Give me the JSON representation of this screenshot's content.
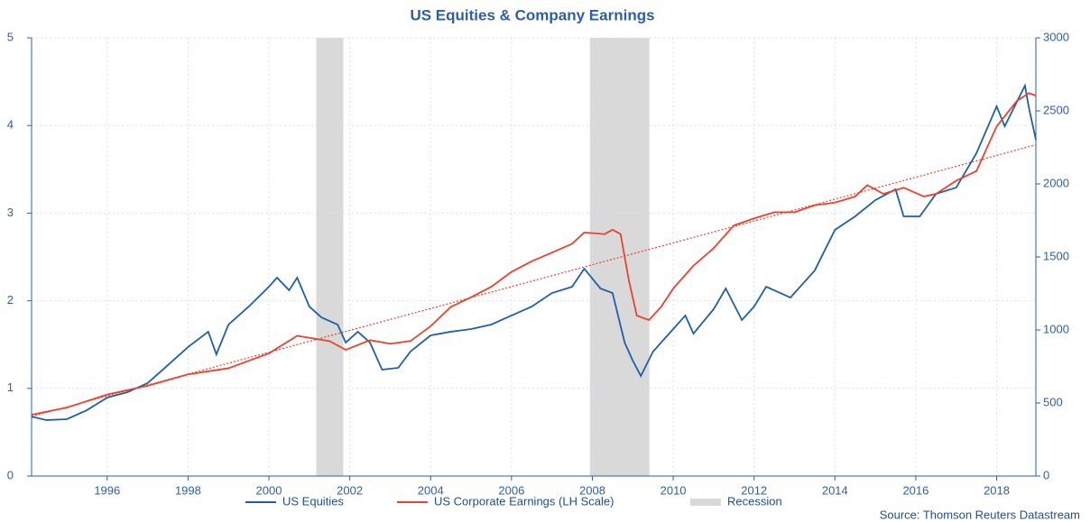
{
  "chart_data": {
    "type": "line",
    "title": "US Equities & Company Earnings",
    "source": "Source: Thomson Reuters Datastream",
    "xlim": [
      1994.13,
      2018.97
    ],
    "xticks": [
      1996,
      1998,
      2000,
      2002,
      2004,
      2006,
      2008,
      2010,
      2012,
      2014,
      2016,
      2018
    ],
    "ylim": [
      0,
      5
    ],
    "yticks": [
      0,
      1,
      2,
      3,
      4,
      5
    ],
    "y2lim": [
      0,
      3000
    ],
    "y2ticks": [
      0,
      500,
      1000,
      1500,
      2000,
      2500,
      3000
    ],
    "grid": true,
    "legend": "bottom",
    "recessions": {
      "name": "Recession",
      "color": "#d9d9d9",
      "spans": [
        [
          2001.17,
          2001.84
        ],
        [
          2007.94,
          2009.41
        ]
      ]
    },
    "series": [
      {
        "name": "US Equities",
        "color": "#1f5fa8",
        "axis": "y2",
        "x": [
          1994.13,
          1994.5,
          1995.0,
          1995.5,
          1996.0,
          1996.5,
          1997.0,
          1997.5,
          1998.0,
          1998.5,
          1998.7,
          1999.0,
          1999.5,
          2000.0,
          2000.2,
          2000.5,
          2000.7,
          2001.0,
          2001.3,
          2001.7,
          2001.9,
          2002.2,
          2002.5,
          2002.8,
          2003.2,
          2003.5,
          2004.0,
          2004.5,
          2005.0,
          2005.5,
          2006.0,
          2006.5,
          2007.0,
          2007.5,
          2007.8,
          2008.2,
          2008.5,
          2008.8,
          2009.0,
          2009.2,
          2009.5,
          2010.0,
          2010.3,
          2010.5,
          2011.0,
          2011.3,
          2011.7,
          2012.0,
          2012.3,
          2012.9,
          2013.5,
          2014.0,
          2014.5,
          2015.0,
          2015.5,
          2015.7,
          2016.1,
          2016.5,
          2017.0,
          2017.5,
          2018.0,
          2018.2,
          2018.7,
          2018.8,
          2018.97
        ],
        "values": [
          407,
          383,
          389,
          451,
          537,
          574,
          636,
          759,
          883,
          988,
          833,
          1037,
          1160,
          1296,
          1358,
          1272,
          1358,
          1160,
          1086,
          1037,
          914,
          988,
          914,
          728,
          741,
          852,
          963,
          988,
          1006,
          1037,
          1099,
          1160,
          1253,
          1296,
          1420,
          1284,
          1253,
          913,
          790,
          685,
          852,
          1006,
          1099,
          975,
          1142,
          1284,
          1068,
          1160,
          1296,
          1222,
          1407,
          1685,
          1778,
          1889,
          1963,
          1778,
          1778,
          1932,
          1975,
          2210,
          2531,
          2395,
          2673,
          2519,
          2302
        ]
      },
      {
        "name": "US Corporate Earnings (LH Scale)",
        "color": "#e8432f",
        "x": [
          1994.13,
          1995.0,
          1996.0,
          1997.0,
          1998.0,
          1999.0,
          2000.0,
          2000.7,
          2001.5,
          2001.9,
          2002.5,
          2003.0,
          2003.5,
          2004.0,
          2004.5,
          2005.0,
          2005.5,
          2006.0,
          2006.5,
          2007.0,
          2007.5,
          2007.8,
          2008.3,
          2008.5,
          2008.7,
          2008.9,
          2009.1,
          2009.4,
          2009.7,
          2010.0,
          2010.5,
          2011.0,
          2011.5,
          2012.0,
          2012.5,
          2013.0,
          2013.5,
          2014.0,
          2014.5,
          2014.8,
          2015.2,
          2015.7,
          2016.2,
          2016.5,
          2017.0,
          2017.5,
          2018.0,
          2018.5,
          2018.8,
          2018.97
        ],
        "values": [
          0.7,
          0.78,
          0.93,
          1.03,
          1.16,
          1.23,
          1.4,
          1.6,
          1.54,
          1.44,
          1.55,
          1.51,
          1.54,
          1.71,
          1.93,
          2.04,
          2.16,
          2.33,
          2.45,
          2.55,
          2.65,
          2.78,
          2.76,
          2.81,
          2.76,
          2.24,
          1.83,
          1.78,
          1.93,
          2.14,
          2.4,
          2.6,
          2.86,
          2.94,
          3.01,
          3.01,
          3.09,
          3.12,
          3.19,
          3.32,
          3.22,
          3.29,
          3.19,
          3.22,
          3.37,
          3.48,
          3.99,
          4.28,
          4.37,
          4.34
        ]
      }
    ],
    "trend_line": {
      "color": "#e8432f",
      "x": [
        1994.13,
        2018.97
      ],
      "values": [
        0.68,
        3.78
      ]
    }
  }
}
